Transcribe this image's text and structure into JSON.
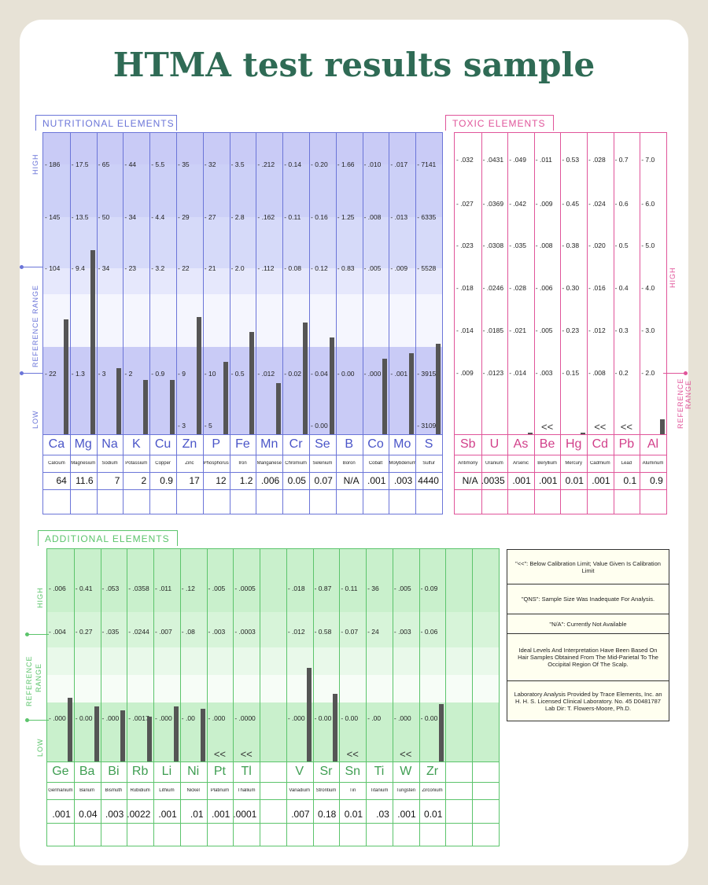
{
  "title": "HTMA test results sample",
  "labels": {
    "high": "HIGH",
    "low": "LOW",
    "reference_range": "REFERENCE RANGE",
    "reference": "REFERENCE",
    "range": "RANGE"
  },
  "notes": [
    "\"<<\": Below Calibration Limit; Value Given Is Calibration Limit",
    "\"QNS\": Sample Size Was Inadequate For Analysis.",
    "\"N/A\": Currently Not Available",
    "Ideal Levels And Interpretation Have Been Based On Hair Samples Obtained From The Mid-Parietal To The Occipital Region Of The Scalp.",
    "Laboratory Analysis Provided by Trace Elements, Inc. an H. H. S. Licensed Clinical Laboratory. No. 45 D0481787 Lab Dir: T. Flowers-Moore, Ph.D."
  ],
  "colors": {
    "nutritional": "#6b75d8",
    "toxic": "#e0559a",
    "additional": "#5cc46c",
    "bar": "#555555",
    "title": "#2f6b55"
  },
  "chart_data": [
    {
      "type": "bar",
      "title": "NUTRITIONAL ELEMENTS",
      "categories": [
        "Ca",
        "Mg",
        "Na",
        "K",
        "Cu",
        "Zn",
        "P",
        "Fe",
        "Mn",
        "Cr",
        "Se",
        "B",
        "Co",
        "Mo",
        "S"
      ],
      "names": [
        "Calcium",
        "Magnesium",
        "Sodium",
        "Potassium",
        "Copper",
        "Zinc",
        "Phosphorus",
        "Iron",
        "Manganese",
        "Chromium",
        "Selenium",
        "Boron",
        "Cobalt",
        "Molybdenum",
        "Sulfur"
      ],
      "values": [
        "64",
        "11.6",
        "7",
        "2",
        "0.9",
        "17",
        "12",
        "1.2",
        ".006",
        "0.05",
        "0.07",
        "N/A",
        ".001",
        ".003",
        "4440"
      ],
      "bar_level": [
        0.38,
        0.61,
        0.22,
        0.18,
        0.18,
        0.39,
        0.24,
        0.34,
        0.17,
        0.37,
        0.32,
        0,
        0.25,
        0.27,
        0.3
      ],
      "scales": [
        [
          "186",
          "145",
          "104",
          "",
          "22",
          ""
        ],
        [
          "17.5",
          "13.5",
          "9.4",
          "",
          "1.3",
          ""
        ],
        [
          "65",
          "50",
          "34",
          "",
          "3",
          ""
        ],
        [
          "44",
          "34",
          "23",
          "",
          "2",
          ""
        ],
        [
          "5.5",
          "4.4",
          "3.2",
          "",
          "0.9",
          ""
        ],
        [
          "35",
          "29",
          "22",
          "",
          "9",
          "3"
        ],
        [
          "32",
          "27",
          "21",
          "",
          "10",
          "5"
        ],
        [
          "3.5",
          "2.8",
          "2.0",
          "",
          "0.5",
          ""
        ],
        [
          ".212",
          ".162",
          ".112",
          "",
          ".012",
          ""
        ],
        [
          "0.14",
          "0.11",
          "0.08",
          "",
          "0.02",
          ""
        ],
        [
          "0.20",
          "0.16",
          "0.12",
          "",
          "0.04",
          "0.00"
        ],
        [
          "1.66",
          "1.25",
          "0.83",
          "",
          "0.00",
          ""
        ],
        [
          ".010",
          ".008",
          ".005",
          "",
          ".000",
          ""
        ],
        [
          ".017",
          ".013",
          ".009",
          "",
          ".001",
          ""
        ],
        [
          "7141",
          "6335",
          "5528",
          "",
          "3915",
          "3109"
        ]
      ]
    },
    {
      "type": "bar",
      "title": "TOXIC ELEMENTS",
      "categories": [
        "Sb",
        "U",
        "As",
        "Be",
        "Hg",
        "Cd",
        "Pb",
        "Al"
      ],
      "names": [
        "Antimony",
        "Uranium",
        "Arsenic",
        "Beryllium",
        "Mercury",
        "Cadmium",
        "Lead",
        "Aluminum"
      ],
      "values": [
        "N/A",
        ".0035",
        ".001",
        ".001",
        "0.01",
        ".001",
        "0.1",
        "0.9"
      ],
      "bar_level": [
        0,
        0,
        0.005,
        0,
        0.005,
        0,
        0,
        0.05
      ],
      "below_limit": [
        false,
        false,
        false,
        true,
        false,
        true,
        true,
        false
      ],
      "scales": [
        [
          ".032",
          ".027",
          ".023",
          ".018",
          ".014",
          ".009"
        ],
        [
          ".0431",
          ".0369",
          ".0308",
          ".0246",
          ".0185",
          ".0123"
        ],
        [
          ".049",
          ".042",
          ".035",
          ".028",
          ".021",
          ".014"
        ],
        [
          ".011",
          ".009",
          ".008",
          ".006",
          ".005",
          ".003"
        ],
        [
          "0.53",
          "0.45",
          "0.38",
          "0.30",
          "0.23",
          "0.15"
        ],
        [
          ".028",
          ".024",
          ".020",
          ".016",
          ".012",
          ".008"
        ],
        [
          "0.7",
          "0.6",
          "0.5",
          "0.4",
          "0.3",
          "0.2"
        ],
        [
          "7.0",
          "6.0",
          "5.0",
          "4.0",
          "3.0",
          "2.0"
        ]
      ]
    },
    {
      "type": "bar",
      "title": "ADDITIONAL ELEMENTS",
      "categories": [
        "Ge",
        "Ba",
        "Bi",
        "Rb",
        "Li",
        "Ni",
        "Pt",
        "Tl",
        "",
        "V",
        "Sr",
        "Sn",
        "Ti",
        "W",
        "Zr",
        "",
        ""
      ],
      "names": [
        "Germanium",
        "Barium",
        "Bismuth",
        "Rubidium",
        "Lithium",
        "Nickel",
        "Platinum",
        "Thallium",
        "",
        "Vanadium",
        "Strontium",
        "Tin",
        "Titanium",
        "Tungsten",
        "Zirconium",
        "",
        ""
      ],
      "values": [
        ".001",
        "0.04",
        ".003",
        ".0022",
        ".001",
        ".01",
        ".001",
        ".0001",
        "",
        ".007",
        "0.18",
        "0.01",
        ".03",
        ".001",
        "0.01",
        "",
        ""
      ],
      "bar_level": [
        0.3,
        0.26,
        0.24,
        0.21,
        0.26,
        0.25,
        0,
        0,
        0,
        0.44,
        0.32,
        0,
        0,
        0,
        0.27,
        0,
        0
      ],
      "below_limit": [
        false,
        false,
        false,
        false,
        false,
        false,
        true,
        true,
        false,
        false,
        false,
        true,
        false,
        true,
        false,
        false,
        false
      ],
      "scales": [
        [
          ".006",
          ".004",
          ".000"
        ],
        [
          "0.41",
          "0.27",
          "0.00"
        ],
        [
          ".053",
          ".035",
          ".000"
        ],
        [
          ".0358",
          ".0244",
          ".0017"
        ],
        [
          ".011",
          ".007",
          ".000"
        ],
        [
          ".12",
          ".08",
          ".00"
        ],
        [
          ".005",
          ".003",
          ".000"
        ],
        [
          ".0005",
          ".0003",
          ".0000"
        ],
        [
          "",
          "",
          ""
        ],
        [
          ".018",
          ".012",
          ".000"
        ],
        [
          "0.87",
          "0.58",
          "0.00"
        ],
        [
          "0.11",
          "0.07",
          "0.00"
        ],
        [
          "36",
          "24",
          ".00"
        ],
        [
          ".005",
          ".003",
          ".000"
        ],
        [
          "0.09",
          "0.06",
          "0.00"
        ],
        [
          "",
          "",
          ""
        ],
        [
          "",
          "",
          ""
        ]
      ]
    }
  ]
}
